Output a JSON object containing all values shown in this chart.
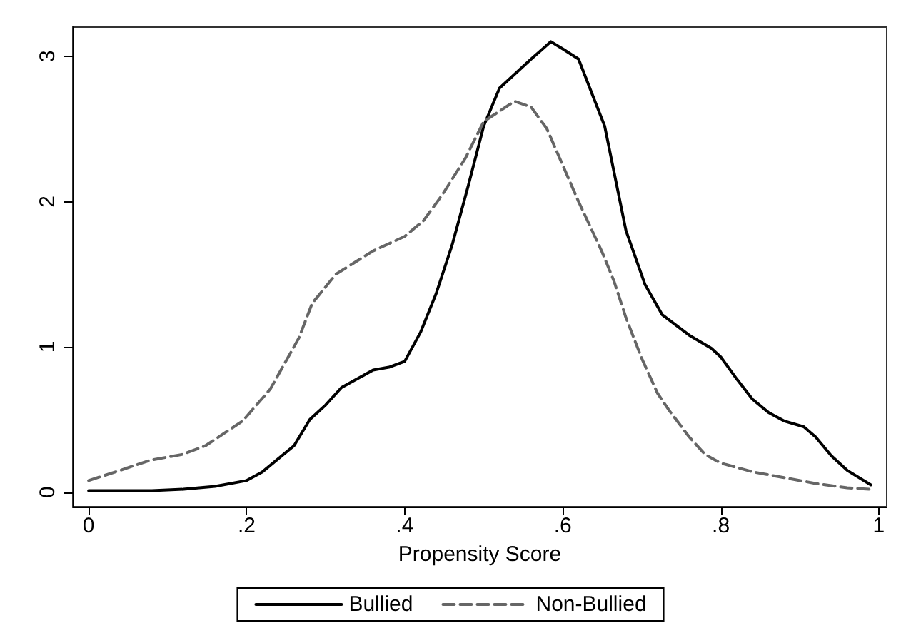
{
  "chart_data": {
    "type": "line",
    "xlabel": "Propensity Score",
    "xlim": [
      -0.02,
      1.01
    ],
    "ylim": [
      -0.1,
      3.2
    ],
    "xticks": [
      0,
      {
        "value": 0.2,
        "label": ".2"
      },
      {
        "value": 0.4,
        "label": ".4"
      },
      {
        "value": 0.6,
        "label": ".6"
      },
      {
        "value": 0.8,
        "label": ".8"
      },
      1
    ],
    "yticks": [
      0,
      1,
      2,
      3
    ],
    "grid": false,
    "legend": "bottom",
    "marker": "none",
    "series": [
      {
        "name": "Bullied",
        "color": "#000000",
        "line_style": "solid",
        "x": [
          0,
          0.08,
          0.12,
          0.16,
          0.2,
          0.22,
          0.26,
          0.28,
          0.3,
          0.32,
          0.34,
          0.36,
          0.38,
          0.4,
          0.42,
          0.44,
          0.46,
          0.48,
          0.5,
          0.52,
          0.56,
          0.585,
          0.6,
          0.62,
          0.64,
          0.653,
          0.68,
          0.704,
          0.726,
          0.76,
          0.788,
          0.8,
          0.82,
          0.84,
          0.86,
          0.88,
          0.905,
          0.92,
          0.94,
          0.96,
          0.99
        ],
        "values": [
          0.01,
          0.01,
          0.02,
          0.04,
          0.08,
          0.14,
          0.32,
          0.5,
          0.6,
          0.72,
          0.78,
          0.84,
          0.86,
          0.9,
          1.1,
          1.37,
          1.7,
          2.1,
          2.52,
          2.78,
          2.98,
          3.1,
          3.05,
          2.98,
          2.7,
          2.52,
          1.8,
          1.43,
          1.22,
          1.08,
          0.99,
          0.93,
          0.78,
          0.64,
          0.55,
          0.49,
          0.45,
          0.38,
          0.25,
          0.15,
          0.05
        ]
      },
      {
        "name": "Non-Bullied",
        "color": "#666666",
        "line_style": "dashed",
        "x": [
          0,
          0.04,
          0.078,
          0.119,
          0.148,
          0.195,
          0.23,
          0.266,
          0.283,
          0.313,
          0.36,
          0.4,
          0.424,
          0.448,
          0.477,
          0.5,
          0.539,
          0.56,
          0.58,
          0.6,
          0.62,
          0.65,
          0.665,
          0.68,
          0.7,
          0.72,
          0.735,
          0.76,
          0.78,
          0.8,
          0.84,
          0.88,
          0.92,
          0.96,
          0.99
        ],
        "values": [
          0.08,
          0.15,
          0.22,
          0.26,
          0.32,
          0.49,
          0.71,
          1.06,
          1.3,
          1.5,
          1.66,
          1.76,
          1.87,
          2.05,
          2.3,
          2.55,
          2.69,
          2.65,
          2.5,
          2.25,
          2.0,
          1.65,
          1.45,
          1.2,
          0.92,
          0.68,
          0.56,
          0.38,
          0.26,
          0.2,
          0.14,
          0.1,
          0.06,
          0.03,
          0.02
        ]
      }
    ]
  }
}
